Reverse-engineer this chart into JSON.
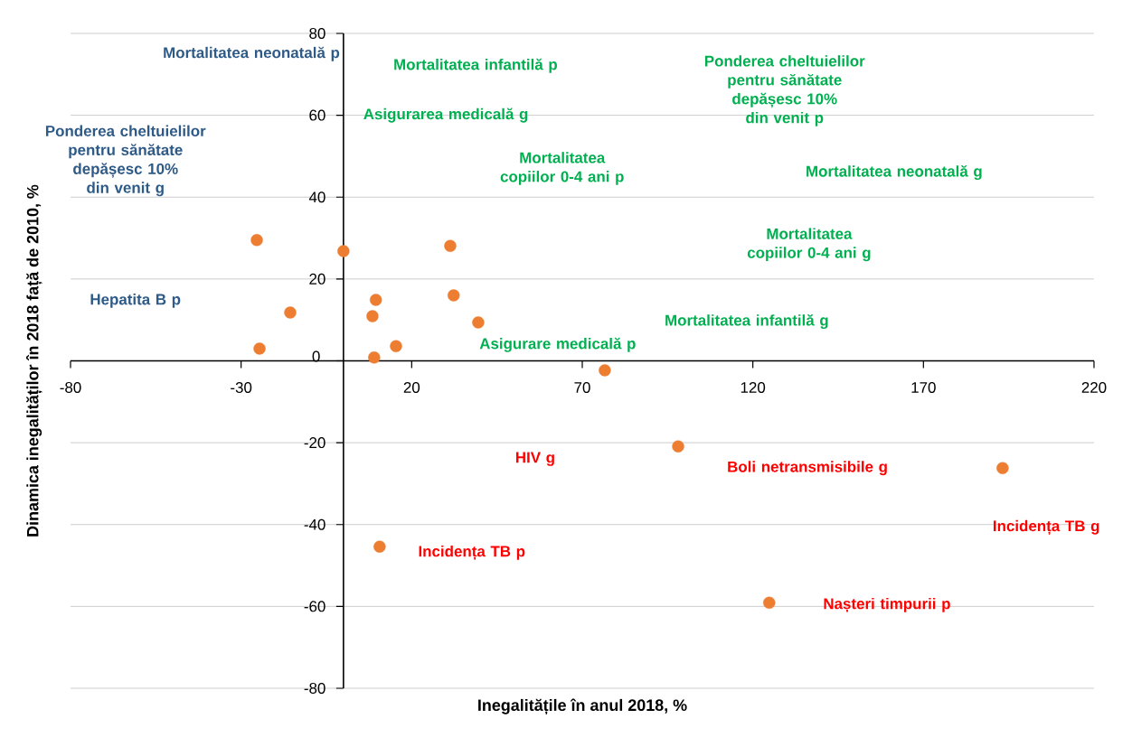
{
  "chart_data": {
    "type": "scatter",
    "xlabel": "Inegalitățile în anul 2018, %",
    "ylabel": "Dinamica inegalităților în 2018 față de 2010, %",
    "x": [
      -25.4,
      0,
      31.3,
      9.5,
      32.3,
      -15.6,
      8.5,
      39.5,
      -24.6,
      15.4,
      9.0,
      76.6,
      98.1,
      193.2,
      10.6,
      124.8
    ],
    "values": [
      29.5,
      26.8,
      28.1,
      14.9,
      16.0,
      11.8,
      10.9,
      9.4,
      3.0,
      3.6,
      0.8,
      -2.3,
      -20.9,
      -26.2,
      -45.4,
      -59.1
    ],
    "color": "#ed7d31",
    "marker": "circle",
    "xlim": [
      -80,
      220
    ],
    "xticks": [
      -80,
      -30,
      20,
      70,
      120,
      170,
      220
    ],
    "ylim": [
      -80,
      80
    ],
    "yticks": [
      -80,
      -60,
      -40,
      -20,
      0,
      20,
      40,
      60,
      80
    ],
    "grid": "y",
    "annotations": [
      "Mortalitatea neonatală p",
      "Ponderea cheltuielilor pentru sănătate depășesc 10% din venit g",
      "Hepatita B p",
      "Mortalitatea infantilă p",
      "Asigurarea medicală g",
      "Mortalitatea copiilor 0-4 ani p",
      "Ponderea cheltuielilor pentru sănătate depășesc 10% din venit p",
      "Mortalitatea neonatală g",
      "Mortalitatea copiilor 0-4 ani g",
      "Mortalitatea infantilă g",
      "Asigurare medicală p",
      "HIV g",
      "Boli netransmisibile g",
      "Incidența TB g",
      "Incidența TB p",
      "Nașteri timpurii p"
    ]
  }
}
